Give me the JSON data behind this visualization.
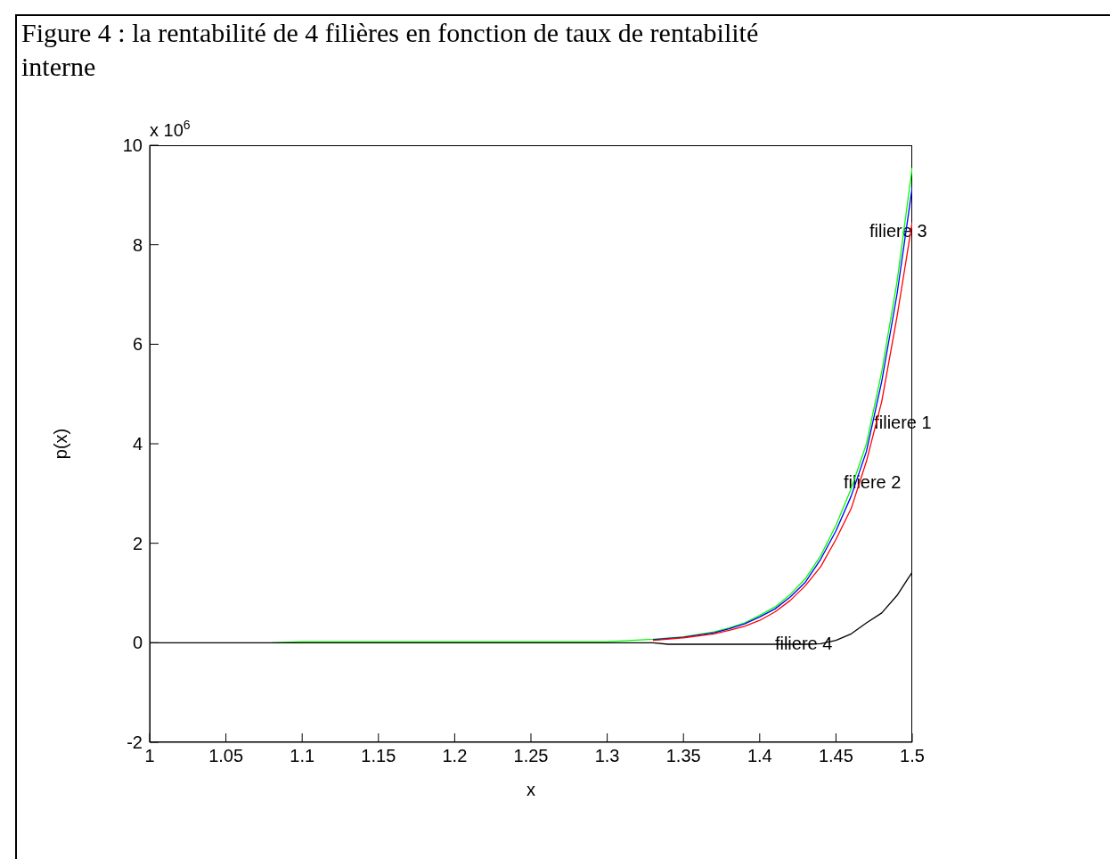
{
  "chart_data": {
    "type": "line",
    "title": "Figure 4 : la rentabilité de 4 filières en fonction de taux de rentabilité interne",
    "xlabel": "x",
    "ylabel": "p(x)",
    "xlim": [
      1,
      1.5
    ],
    "xticks": [
      1,
      1.05,
      1.1,
      1.15,
      1.2,
      1.25,
      1.3,
      1.35,
      1.4,
      1.45,
      1.5
    ],
    "ylim": [
      -2,
      10
    ],
    "yticks": [
      -2,
      0,
      2,
      4,
      6,
      8,
      10
    ],
    "marker": "none",
    "line_style": "solid",
    "annotations": [
      "x 10$^{6}$",
      "filiere 3",
      {
        "text": "filiere 1",
        "x": 1.475,
        "y": 4.4
      },
      "filiere 2",
      {
        "text": "filiere 4",
        "x": 1.41,
        "y": -0.05
      }
    ],
    "series": [
      {
        "color": "#00ff00",
        "x": [
          1.08,
          1.1,
          1.2,
          1.3,
          1.33,
          1.35,
          1.37,
          1.38,
          1.39,
          1.4,
          1.41,
          1.42,
          1.43,
          1.44,
          1.45,
          1.46,
          1.47,
          1.48,
          1.49,
          1.5
        ],
        "values": [
          0,
          0.02,
          0.02,
          0.02,
          0.07,
          0.12,
          0.22,
          0.3,
          0.4,
          0.55,
          0.72,
          0.97,
          1.29,
          1.75,
          2.36,
          3.1,
          4.0,
          5.45,
          7.25,
          9.55
        ]
      },
      {
        "color": "#0000ff",
        "x": [
          1.33,
          1.35,
          1.37,
          1.38,
          1.39,
          1.4,
          1.41,
          1.42,
          1.43,
          1.44,
          1.45,
          1.46,
          1.47,
          1.48,
          1.49,
          1.5
        ],
        "values": [
          0.06,
          0.11,
          0.2,
          0.28,
          0.38,
          0.52,
          0.68,
          0.92,
          1.22,
          1.68,
          2.25,
          2.95,
          3.85,
          5.25,
          7.0,
          9.15
        ]
      },
      {
        "color": "#ff0000",
        "x": [
          1.33,
          1.35,
          1.37,
          1.38,
          1.39,
          1.4,
          1.41,
          1.42,
          1.43,
          1.44,
          1.45,
          1.46,
          1.47,
          1.48,
          1.49,
          1.5
        ],
        "values": [
          0.05,
          0.1,
          0.18,
          0.25,
          0.33,
          0.45,
          0.62,
          0.85,
          1.15,
          1.53,
          2.08,
          2.7,
          3.65,
          4.85,
          6.55,
          8.45
        ]
      },
      {
        "color": "#000000",
        "x": [
          1,
          1.1,
          1.2,
          1.3,
          1.33,
          1.34,
          1.4,
          1.43,
          1.44,
          1.45,
          1.46,
          1.47,
          1.48,
          1.49,
          1.5
        ],
        "values": [
          0,
          0,
          0,
          0,
          0,
          -0.03,
          -0.03,
          -0.03,
          -0.02,
          0.05,
          0.18,
          0.4,
          0.6,
          0.95,
          1.42
        ]
      }
    ]
  }
}
